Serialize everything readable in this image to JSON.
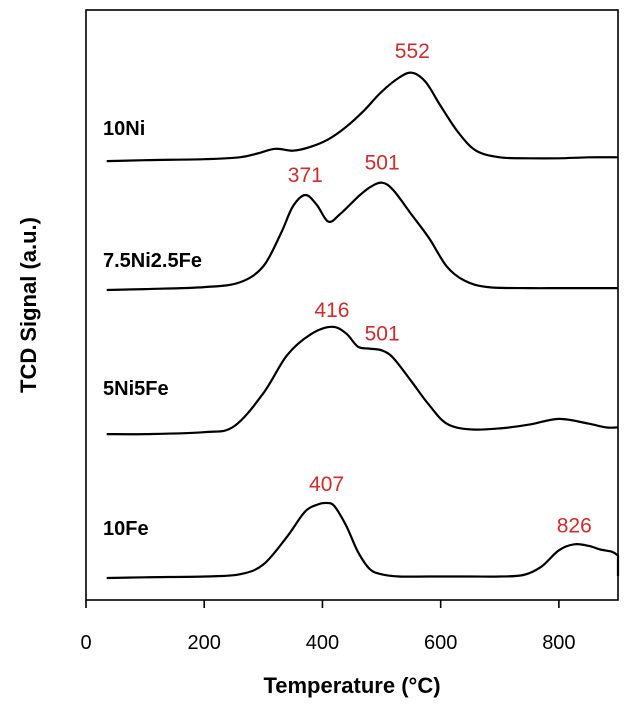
{
  "chart_data": {
    "type": "line",
    "xlabel": "Temperature (°C)",
    "ylabel": "TCD Signal (a.u.)",
    "xlim": [
      0,
      900
    ],
    "xticks": [
      0,
      200,
      400,
      600,
      800
    ],
    "xtick_labels": [
      "0",
      "200",
      "400",
      "600",
      "800"
    ],
    "grid": false,
    "label_color": "#d42a2a",
    "line_color": "#000000",
    "series": [
      {
        "name": "10Ni",
        "x": [
          35,
          100,
          200,
          260,
          290,
          320,
          350,
          380,
          410,
          440,
          470,
          500,
          530,
          552,
          575,
          600,
          630,
          660,
          700,
          750,
          800,
          850,
          900
        ],
        "y": [
          0.02,
          0.03,
          0.04,
          0.06,
          0.1,
          0.15,
          0.13,
          0.17,
          0.25,
          0.38,
          0.55,
          0.75,
          0.9,
          0.95,
          0.85,
          0.6,
          0.32,
          0.13,
          0.06,
          0.05,
          0.05,
          0.06,
          0.06
        ],
        "peaks": [
          {
            "x": 552,
            "label": "552"
          }
        ]
      },
      {
        "name": "7.5Ni2.5Fe",
        "x": [
          35,
          100,
          200,
          260,
          300,
          330,
          350,
          371,
          390,
          410,
          430,
          460,
          480,
          501,
          520,
          550,
          580,
          610,
          640,
          680,
          750,
          800,
          850,
          900
        ],
        "y": [
          0.0,
          0.01,
          0.03,
          0.08,
          0.25,
          0.6,
          0.88,
          1.0,
          0.9,
          0.72,
          0.8,
          0.98,
          1.08,
          1.13,
          1.05,
          0.8,
          0.55,
          0.25,
          0.1,
          0.03,
          0.02,
          0.02,
          0.02,
          0.02
        ],
        "peaks": [
          {
            "x": 371,
            "label": "371"
          },
          {
            "x": 501,
            "label": "501"
          }
        ]
      },
      {
        "name": "5Ni5Fe",
        "x": [
          35,
          100,
          200,
          250,
          300,
          340,
          380,
          416,
          440,
          460,
          480,
          501,
          520,
          550,
          580,
          610,
          650,
          700,
          750,
          800,
          850,
          880,
          900
        ],
        "y": [
          0.02,
          0.02,
          0.04,
          0.1,
          0.45,
          0.85,
          1.07,
          1.15,
          1.08,
          0.94,
          0.92,
          0.9,
          0.82,
          0.58,
          0.33,
          0.13,
          0.07,
          0.08,
          0.12,
          0.18,
          0.13,
          0.09,
          0.09
        ],
        "peaks": [
          {
            "x": 416,
            "label": "416"
          },
          {
            "x": 501,
            "label": "501"
          }
        ]
      },
      {
        "name": "10Fe",
        "x": [
          35,
          100,
          200,
          260,
          300,
          340,
          370,
          392,
          407,
          420,
          440,
          460,
          480,
          500,
          530,
          580,
          650,
          700,
          740,
          770,
          800,
          826,
          850,
          870,
          890,
          900
        ],
        "y": [
          0.0,
          0.01,
          0.02,
          0.05,
          0.18,
          0.55,
          0.88,
          0.98,
          1.0,
          0.96,
          0.7,
          0.35,
          0.12,
          0.05,
          0.02,
          0.02,
          0.02,
          0.02,
          0.04,
          0.15,
          0.37,
          0.45,
          0.43,
          0.38,
          0.35,
          0.3
        ],
        "peaks": [
          {
            "x": 407,
            "label": "407"
          },
          {
            "x": 826,
            "label": "826"
          }
        ]
      }
    ]
  }
}
